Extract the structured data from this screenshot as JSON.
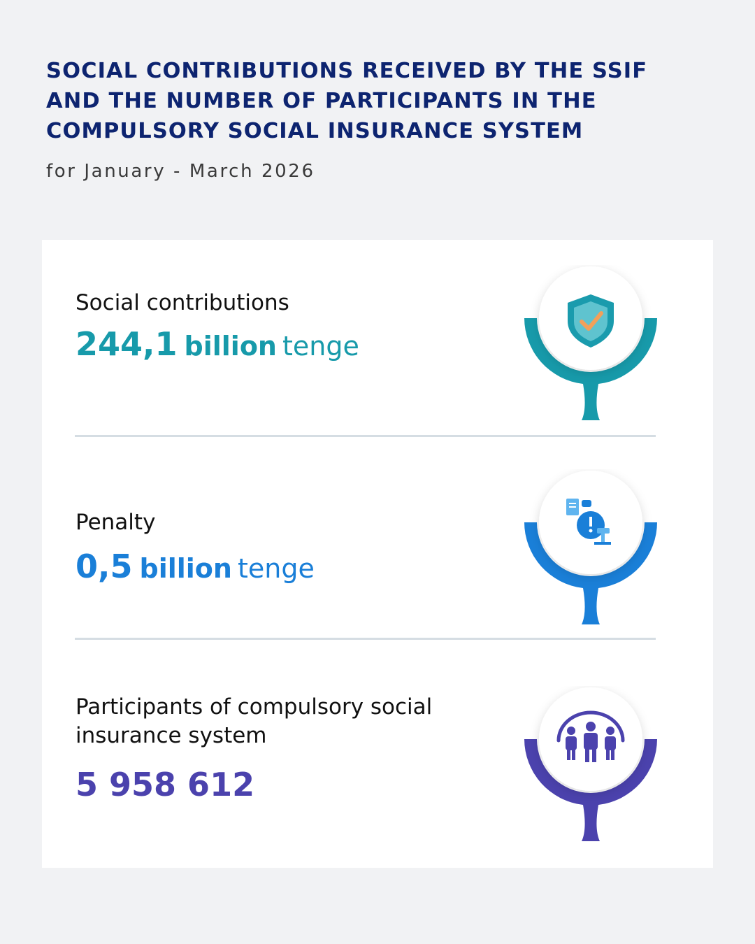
{
  "header": {
    "title_lines": [
      "SOCIAL CONTRIBUTIONS RECEIVED BY THE SSIF",
      "AND THE NUMBER OF PARTICIPANTS IN THE",
      "COMPULSORY SOCIAL INSURANCE SYSTEM"
    ],
    "subtitle": "for January - March 2026"
  },
  "items": [
    {
      "label_lines": [
        "Social contributions"
      ],
      "number": "244,1",
      "unit": "billion",
      "currency": "tenge",
      "color": "#179aaa",
      "icon": "shield-check-icon"
    },
    {
      "label_lines": [
        "Penalty"
      ],
      "number": "0,5",
      "unit": "billion",
      "currency": "tenge",
      "color": "#1a7fd8",
      "icon": "money-bag-gavel-icon"
    },
    {
      "label_lines": [
        "Participants of compulsory social",
        "insurance system"
      ],
      "number": "5 958 612",
      "unit": "",
      "currency": "",
      "color": "#4b42ad",
      "icon": "people-group-icon"
    }
  ]
}
